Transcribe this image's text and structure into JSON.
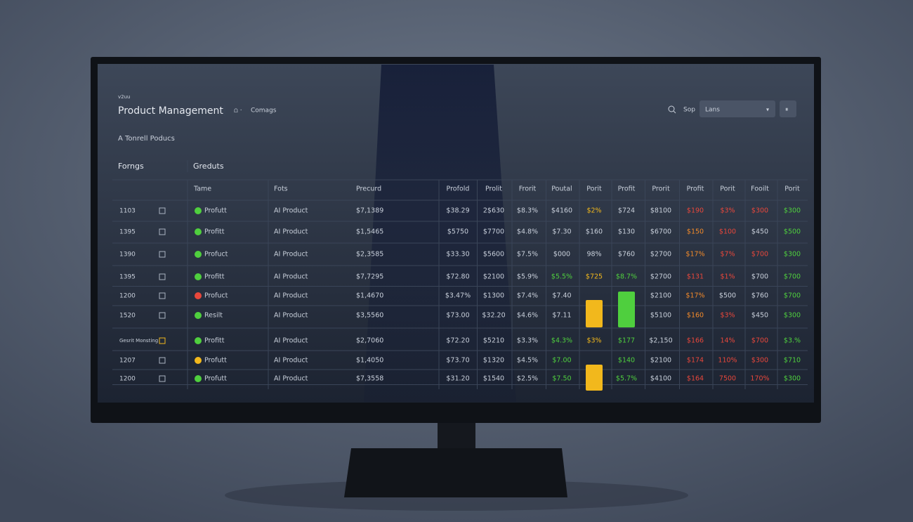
{
  "header": {
    "kicker": "v2uu",
    "title": "Product Management",
    "breadcrumb": "Comags",
    "search_label": "Sop",
    "dropdown": "Lans"
  },
  "subtitle": "A Tonrell Poducs",
  "tabs": [
    "Forngs",
    "Greduts"
  ],
  "table": {
    "columns": [
      "Tame",
      "Fots",
      "Precurd",
      "Profold",
      "Prolit",
      "Frorit",
      "Poutal",
      "Porit",
      "Profit",
      "Prorit",
      "Profit",
      "Porit",
      "Fooilt",
      "Porit"
    ],
    "rows": [
      {
        "id": "1103",
        "icon": "g",
        "name": "Profutt",
        "category": "AI Product",
        "price": "$7,1389",
        "cells": [
          "$38.29",
          "2$630",
          "$8.3%",
          "$4160",
          "$2%",
          "$724",
          "$8100",
          "$190",
          "$3%",
          "$300",
          "$300"
        ],
        "tones": [
          "w",
          "w",
          "w",
          "w",
          "y",
          "w",
          "w",
          "r",
          "r",
          "r",
          "g"
        ]
      },
      {
        "id": "1395",
        "icon": "g",
        "name": "Profitt",
        "category": "AI Product",
        "price": "$1,5465",
        "cells": [
          "$5750",
          "$7700",
          "$4.8%",
          "$7.30",
          "$160",
          "$130",
          "$6700",
          "$150",
          "$100",
          "$450",
          "$500"
        ],
        "tones": [
          "w",
          "w",
          "w",
          "w",
          "w",
          "w",
          "w",
          "o",
          "r",
          "w",
          "g"
        ]
      },
      {
        "id": "1390",
        "icon": "g",
        "name": "Profuct",
        "category": "AI Product",
        "price": "$2,3585",
        "cells": [
          "$33.30",
          "$5600",
          "$7.5%",
          "$000",
          "98%",
          "$760",
          "$2700",
          "$17%",
          "$7%",
          "$700",
          "$300"
        ],
        "tones": [
          "w",
          "w",
          "w",
          "w",
          "w",
          "w",
          "w",
          "o",
          "r",
          "r",
          "g"
        ]
      },
      {
        "id": "1395",
        "icon": "g",
        "name": "Profitt",
        "category": "AI Product",
        "price": "$7,7295",
        "cells": [
          "$72.80",
          "$2100",
          "$5.9%",
          "$5.5%",
          "$725",
          "$8.7%",
          "$2700",
          "$131",
          "$1%",
          "$700",
          "$700"
        ],
        "tones": [
          "w",
          "w",
          "w",
          "g",
          "y",
          "g",
          "w",
          "r",
          "r",
          "w",
          "g"
        ]
      },
      {
        "id": "1200",
        "icon": "r",
        "name": "Profuct",
        "category": "AI Product",
        "price": "$1,4670",
        "cells": [
          "$3.47%",
          "$1300",
          "$7.4%",
          "$7.40",
          null,
          null,
          "$2100",
          "$17%",
          "$500",
          "$760",
          "$700"
        ],
        "tones": [
          "w",
          "w",
          "w",
          "w",
          "y",
          "g",
          "w",
          "o",
          "w",
          "w",
          "g"
        ]
      },
      {
        "id": "1520",
        "icon": "g",
        "name": "Resilt",
        "category": "AI Product",
        "price": "$3,5560",
        "cells": [
          "$73.00",
          "$32.20",
          "$4.6%",
          "$7.11",
          null,
          null,
          "$5100",
          "$160",
          "$3%",
          "$450",
          "$300"
        ],
        "tones": [
          "w",
          "w",
          "w",
          "w",
          "y",
          "g",
          "w",
          "o",
          "r",
          "w",
          "g"
        ]
      },
      {
        "id": "Gesrit Monsting",
        "icon": "g",
        "name": "Profitt",
        "category": "AI Product",
        "price": "$2,7060",
        "cells": [
          "$72.20",
          "$5210",
          "$3.3%",
          "$4.3%",
          "$3%",
          "$177",
          "$2,150",
          "$166",
          "14%",
          "$700",
          "$3.%"
        ],
        "tones": [
          "w",
          "w",
          "w",
          "g",
          "y",
          "g",
          "w",
          "r",
          "r",
          "r",
          "g"
        ]
      },
      {
        "id": "1207",
        "icon": "y",
        "name": "Profutt",
        "category": "AI Product",
        "price": "$1,4050",
        "cells": [
          "$73.70",
          "$1320",
          "$4.5%",
          "$7.00",
          null,
          "$140",
          "$2100",
          "$174",
          "110%",
          "$300",
          "$710"
        ],
        "tones": [
          "w",
          "w",
          "w",
          "g",
          "y",
          "g",
          "w",
          "r",
          "r",
          "r",
          "g"
        ]
      },
      {
        "id": "1200",
        "icon": "g",
        "name": "Profutt",
        "category": "AI Product",
        "price": "$7,3558",
        "cells": [
          "$31.20",
          "$1540",
          "$2.5%",
          "$7.50",
          null,
          "$5.7%",
          "$4100",
          "$164",
          "7500",
          "170%",
          "$300"
        ],
        "tones": [
          "w",
          "w",
          "w",
          "g",
          "y",
          "g",
          "w",
          "r",
          "r",
          "r",
          "g"
        ]
      }
    ]
  }
}
